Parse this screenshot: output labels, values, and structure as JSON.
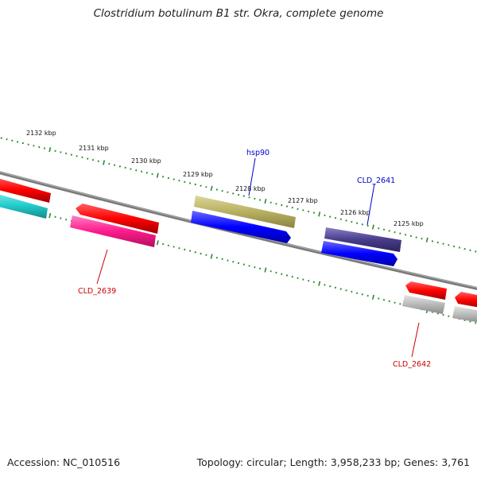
{
  "title": "Clostridium botulinum B1 str. Okra, complete genome",
  "footer": {
    "accession": "Accession: NC_010516",
    "summary": "Topology: circular; Length: 3,958,233 bp; Genes: 3,761"
  },
  "ticks": [
    {
      "label": "2132 kbp"
    },
    {
      "label": "2131 kbp"
    },
    {
      "label": "2130 kbp"
    },
    {
      "label": "2129 kbp"
    },
    {
      "label": "2128 kbp"
    },
    {
      "label": "2127 kbp"
    },
    {
      "label": "2126 kbp"
    },
    {
      "label": "2125 kbp"
    }
  ],
  "gene_labels": [
    {
      "name": "hsp90",
      "color": "#0000cc"
    },
    {
      "name": "CLD_2641",
      "color": "#0000cc"
    },
    {
      "name": "CLD_2639",
      "color": "#cc0000"
    },
    {
      "name": "CLD_2642",
      "color": "#cc0000"
    }
  ],
  "colors": {
    "backbone": "#808080",
    "tick_green": "#2a8a2a",
    "red": "#ff0000",
    "blue": "#0000ff",
    "cyan": "#22cccc",
    "magenta": "#ff1a8c",
    "olive": "#b8b060",
    "navy": "#483d8b",
    "gray": "#b8b8b8"
  }
}
